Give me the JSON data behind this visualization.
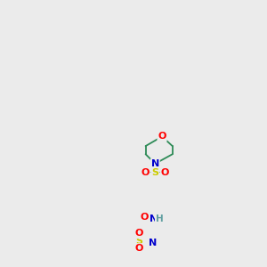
{
  "background_color": "#ebebeb",
  "atom_colors": {
    "C": "#2e8b57",
    "N": "#0000cc",
    "O": "#ff0000",
    "S": "#cccc00",
    "H": "#5f9ea0"
  },
  "bond_color": "#2e8b57",
  "figsize": [
    3.0,
    3.0
  ],
  "dpi": 100,
  "lw": 1.3,
  "fs": 8.0
}
